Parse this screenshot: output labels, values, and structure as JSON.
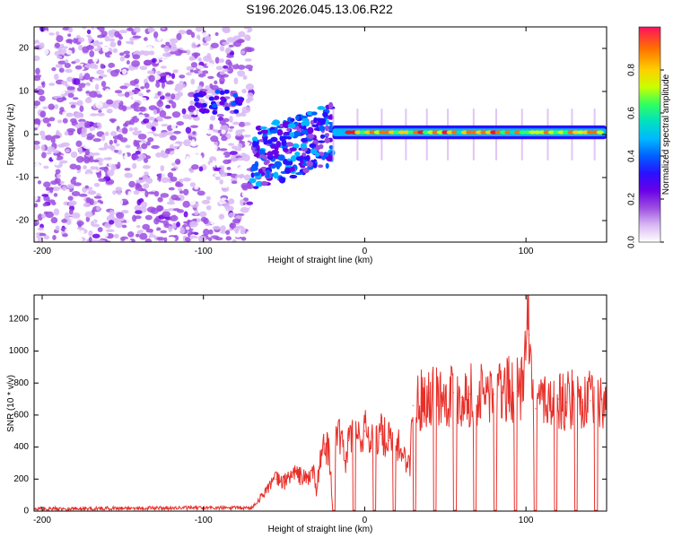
{
  "page": {
    "title": "S196.2026.045.13.06.R22"
  },
  "colors": {
    "line": "#e8302a",
    "axis": "#000000",
    "palette": [
      "#ffffff",
      "#d8b8f4",
      "#9b4de0",
      "#6a00e8",
      "#2a10ff",
      "#0060ff",
      "#00b8ff",
      "#00e0c0",
      "#30ff60",
      "#c8ff00",
      "#ffd000",
      "#ff7000",
      "#ff1020"
    ]
  },
  "chart_data": [
    {
      "type": "heatmap",
      "title": "S196.2026.045.13.06.R22",
      "xlabel": "Height of straight line (km)",
      "ylabel": "Frequency (Hz)",
      "xlim": [
        -205,
        150
      ],
      "ylim": [
        -25,
        25
      ],
      "x_ticks": [
        -200,
        -100,
        0,
        100
      ],
      "x_tick_labels": [
        "-200",
        "-100",
        "0",
        "100"
      ],
      "y_ticks": [
        -20,
        -10,
        0,
        10,
        20
      ],
      "y_tick_labels": [
        "-20",
        "-10",
        "0",
        "10",
        "20"
      ],
      "colorbar": {
        "label": "Normalized spectral amplitude",
        "range": [
          0,
          1
        ],
        "ticks": [
          0.0,
          0.2,
          0.4,
          0.6,
          0.8
        ],
        "tick_labels": [
          "0.0",
          "0.2",
          "0.4",
          "0.6",
          "0.8"
        ]
      },
      "regions": [
        {
          "name": "diffuse noise",
          "x_range": [
            -205,
            -70
          ],
          "freq_range": [
            -25,
            25
          ],
          "amplitude": 0.1
        },
        {
          "name": "scattered transition",
          "x_range": [
            -70,
            -20
          ],
          "freq_range": [
            -12,
            8
          ],
          "amplitude": 0.35
        },
        {
          "name": "steady tone",
          "x_range": [
            -20,
            150
          ],
          "freq": 0.5,
          "amplitude": 0.9
        }
      ]
    },
    {
      "type": "line",
      "xlabel": "Height of straight line (km)",
      "ylabel": "SNR (10 * v/v)",
      "xlim": [
        -205,
        150
      ],
      "ylim": [
        0,
        1350
      ],
      "x_ticks": [
        -200,
        -100,
        0,
        100
      ],
      "x_tick_labels": [
        "-200",
        "-100",
        "0",
        "100"
      ],
      "y_ticks": [
        0,
        200,
        400,
        600,
        800,
        1000,
        1200
      ],
      "y_tick_labels": [
        "0",
        "200",
        "400",
        "600",
        "800",
        "1000",
        "1200"
      ],
      "series": [
        {
          "name": "SNR",
          "x": [
            -205,
            -180,
            -150,
            -120,
            -90,
            -70,
            -65,
            -60,
            -55,
            -50,
            -45,
            -40,
            -35,
            -32,
            -30,
            -28,
            -25,
            -22,
            -20,
            -18,
            -15,
            -12,
            -10,
            -8,
            -5,
            0,
            5,
            10,
            15,
            20,
            25,
            28,
            30,
            35,
            40,
            45,
            50,
            55,
            60,
            65,
            70,
            75,
            80,
            85,
            90,
            95,
            98,
            100,
            102,
            104,
            106,
            110,
            115,
            120,
            125,
            130,
            135,
            140,
            145,
            150
          ],
          "values": [
            15,
            15,
            18,
            20,
            20,
            20,
            80,
            150,
            200,
            180,
            240,
            220,
            200,
            260,
            120,
            280,
            420,
            380,
            40,
            420,
            460,
            300,
            440,
            480,
            460,
            500,
            460,
            480,
            440,
            420,
            340,
            280,
            660,
            700,
            740,
            730,
            720,
            740,
            710,
            730,
            720,
            740,
            730,
            740,
            760,
            750,
            780,
            1340,
            1100,
            700,
            640,
            720,
            680,
            700,
            680,
            700,
            680,
            690,
            650,
            700
          ]
        }
      ]
    }
  ]
}
